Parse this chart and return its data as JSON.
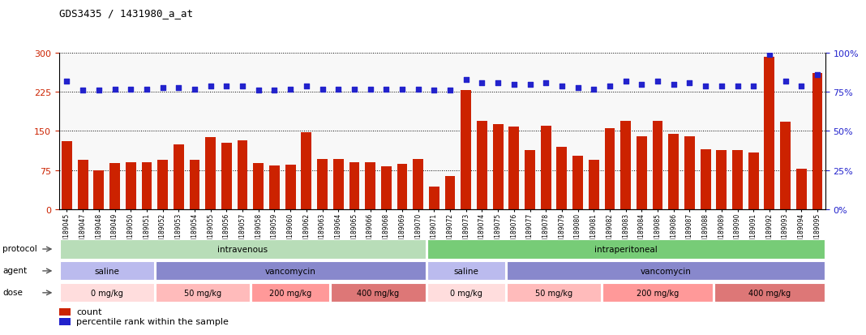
{
  "title": "GDS3435 / 1431980_a_at",
  "samples": [
    "GSM189045",
    "GSM189047",
    "GSM189048",
    "GSM189049",
    "GSM189050",
    "GSM189051",
    "GSM189052",
    "GSM189053",
    "GSM189054",
    "GSM189055",
    "GSM189056",
    "GSM189057",
    "GSM189058",
    "GSM189059",
    "GSM189060",
    "GSM189062",
    "GSM189063",
    "GSM189064",
    "GSM189065",
    "GSM189066",
    "GSM189068",
    "GSM189069",
    "GSM189070",
    "GSM189071",
    "GSM189072",
    "GSM189073",
    "GSM189074",
    "GSM189075",
    "GSM189076",
    "GSM189077",
    "GSM189078",
    "GSM189079",
    "GSM189080",
    "GSM189081",
    "GSM189082",
    "GSM189083",
    "GSM189084",
    "GSM189085",
    "GSM189086",
    "GSM189087",
    "GSM189088",
    "GSM189089",
    "GSM189090",
    "GSM189091",
    "GSM189092",
    "GSM189093",
    "GSM189094",
    "GSM189095"
  ],
  "counts": [
    130,
    95,
    75,
    88,
    90,
    90,
    95,
    125,
    95,
    138,
    128,
    132,
    88,
    83,
    85,
    148,
    97,
    96,
    90,
    90,
    82,
    87,
    97,
    43,
    63,
    228,
    170,
    163,
    158,
    113,
    160,
    120,
    103,
    95,
    155,
    170,
    140,
    170,
    145,
    140,
    115,
    113,
    113,
    108,
    292,
    168,
    78,
    262
  ],
  "percentile_ranks": [
    82,
    76,
    76,
    77,
    77,
    77,
    78,
    78,
    77,
    79,
    79,
    79,
    76,
    76,
    77,
    79,
    77,
    77,
    77,
    77,
    77,
    77,
    77,
    76,
    76,
    83,
    81,
    81,
    80,
    80,
    81,
    79,
    78,
    77,
    79,
    82,
    80,
    82,
    80,
    81,
    79,
    79,
    79,
    79,
    99,
    82,
    79,
    86
  ],
  "ylim_left": [
    0,
    300
  ],
  "ylim_right": [
    0,
    100
  ],
  "yticks_left": [
    0,
    75,
    150,
    225,
    300
  ],
  "yticks_right": [
    0,
    25,
    50,
    75,
    100
  ],
  "bar_color": "#cc2200",
  "dot_color": "#2222cc",
  "bg_color": "#f8f8f8",
  "protocols": [
    {
      "label": "intravenous",
      "start": 0,
      "end": 23,
      "color": "#b8ddb8"
    },
    {
      "label": "intraperitoneal",
      "start": 23,
      "end": 48,
      "color": "#77cc77"
    }
  ],
  "agents": [
    {
      "label": "saline",
      "start": 0,
      "end": 6,
      "color": "#bbbbee"
    },
    {
      "label": "vancomycin",
      "start": 6,
      "end": 23,
      "color": "#8888cc"
    },
    {
      "label": "saline",
      "start": 23,
      "end": 28,
      "color": "#bbbbee"
    },
    {
      "label": "vancomycin",
      "start": 28,
      "end": 48,
      "color": "#8888cc"
    }
  ],
  "doses": [
    {
      "label": "0 mg/kg",
      "start": 0,
      "end": 6,
      "color": "#ffdddd"
    },
    {
      "label": "50 mg/kg",
      "start": 6,
      "end": 12,
      "color": "#ffbbbb"
    },
    {
      "label": "200 mg/kg",
      "start": 12,
      "end": 17,
      "color": "#ff9999"
    },
    {
      "label": "400 mg/kg",
      "start": 17,
      "end": 23,
      "color": "#dd7777"
    },
    {
      "label": "0 mg/kg",
      "start": 23,
      "end": 28,
      "color": "#ffdddd"
    },
    {
      "label": "50 mg/kg",
      "start": 28,
      "end": 34,
      "color": "#ffbbbb"
    },
    {
      "label": "200 mg/kg",
      "start": 34,
      "end": 41,
      "color": "#ff9999"
    },
    {
      "label": "400 mg/kg",
      "start": 41,
      "end": 48,
      "color": "#dd7777"
    }
  ],
  "legend_count_label": "count",
  "legend_pct_label": "percentile rank within the sample"
}
